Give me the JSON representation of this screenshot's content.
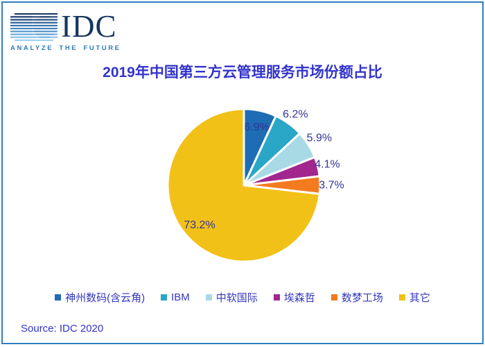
{
  "logo": {
    "name": "IDC",
    "tagline": "ANALYZE THE FUTURE"
  },
  "chart_data": {
    "type": "pie",
    "title": "2019年中国第三方云管理服务市场份额占比",
    "slices": [
      {
        "label": "神州数码(含云角)",
        "value": 6.9,
        "value_label": "6.9%",
        "color": "#1e6cb4"
      },
      {
        "label": "IBM",
        "value": 6.2,
        "value_label": "6.2%",
        "color": "#2aa6c6"
      },
      {
        "label": "中软国际",
        "value": 5.9,
        "value_label": "5.9%",
        "color": "#a8dae6"
      },
      {
        "label": "埃森哲",
        "value": 4.1,
        "value_label": "4.1%",
        "color": "#a1278f"
      },
      {
        "label": "数梦工场",
        "value": 3.7,
        "value_label": "3.7%",
        "color": "#f47a20"
      },
      {
        "label": "其它",
        "value": 73.2,
        "value_label": "73.2%",
        "color": "#f2c118"
      }
    ],
    "start_angle_deg": 0,
    "direction": "clockwise",
    "legend_position": "bottom",
    "layout": {
      "label_radius_factor": [
        0.78,
        1.15,
        1.17,
        1.13,
        1.15,
        0.78
      ],
      "slice_gap_color": "#ffffff",
      "slice_gap_width": 3
    }
  },
  "source": "Source: IDC 2020",
  "palette": {
    "frame": "#2e7ec0",
    "background": "#ffffff",
    "title_text": "#3233cb",
    "body_text": "#3233cb",
    "pie_label_text": "#333399",
    "legend_text": "#3336bb",
    "logo_navy": "#17365f",
    "logo_tagline_blue": "#2e7cb8"
  }
}
